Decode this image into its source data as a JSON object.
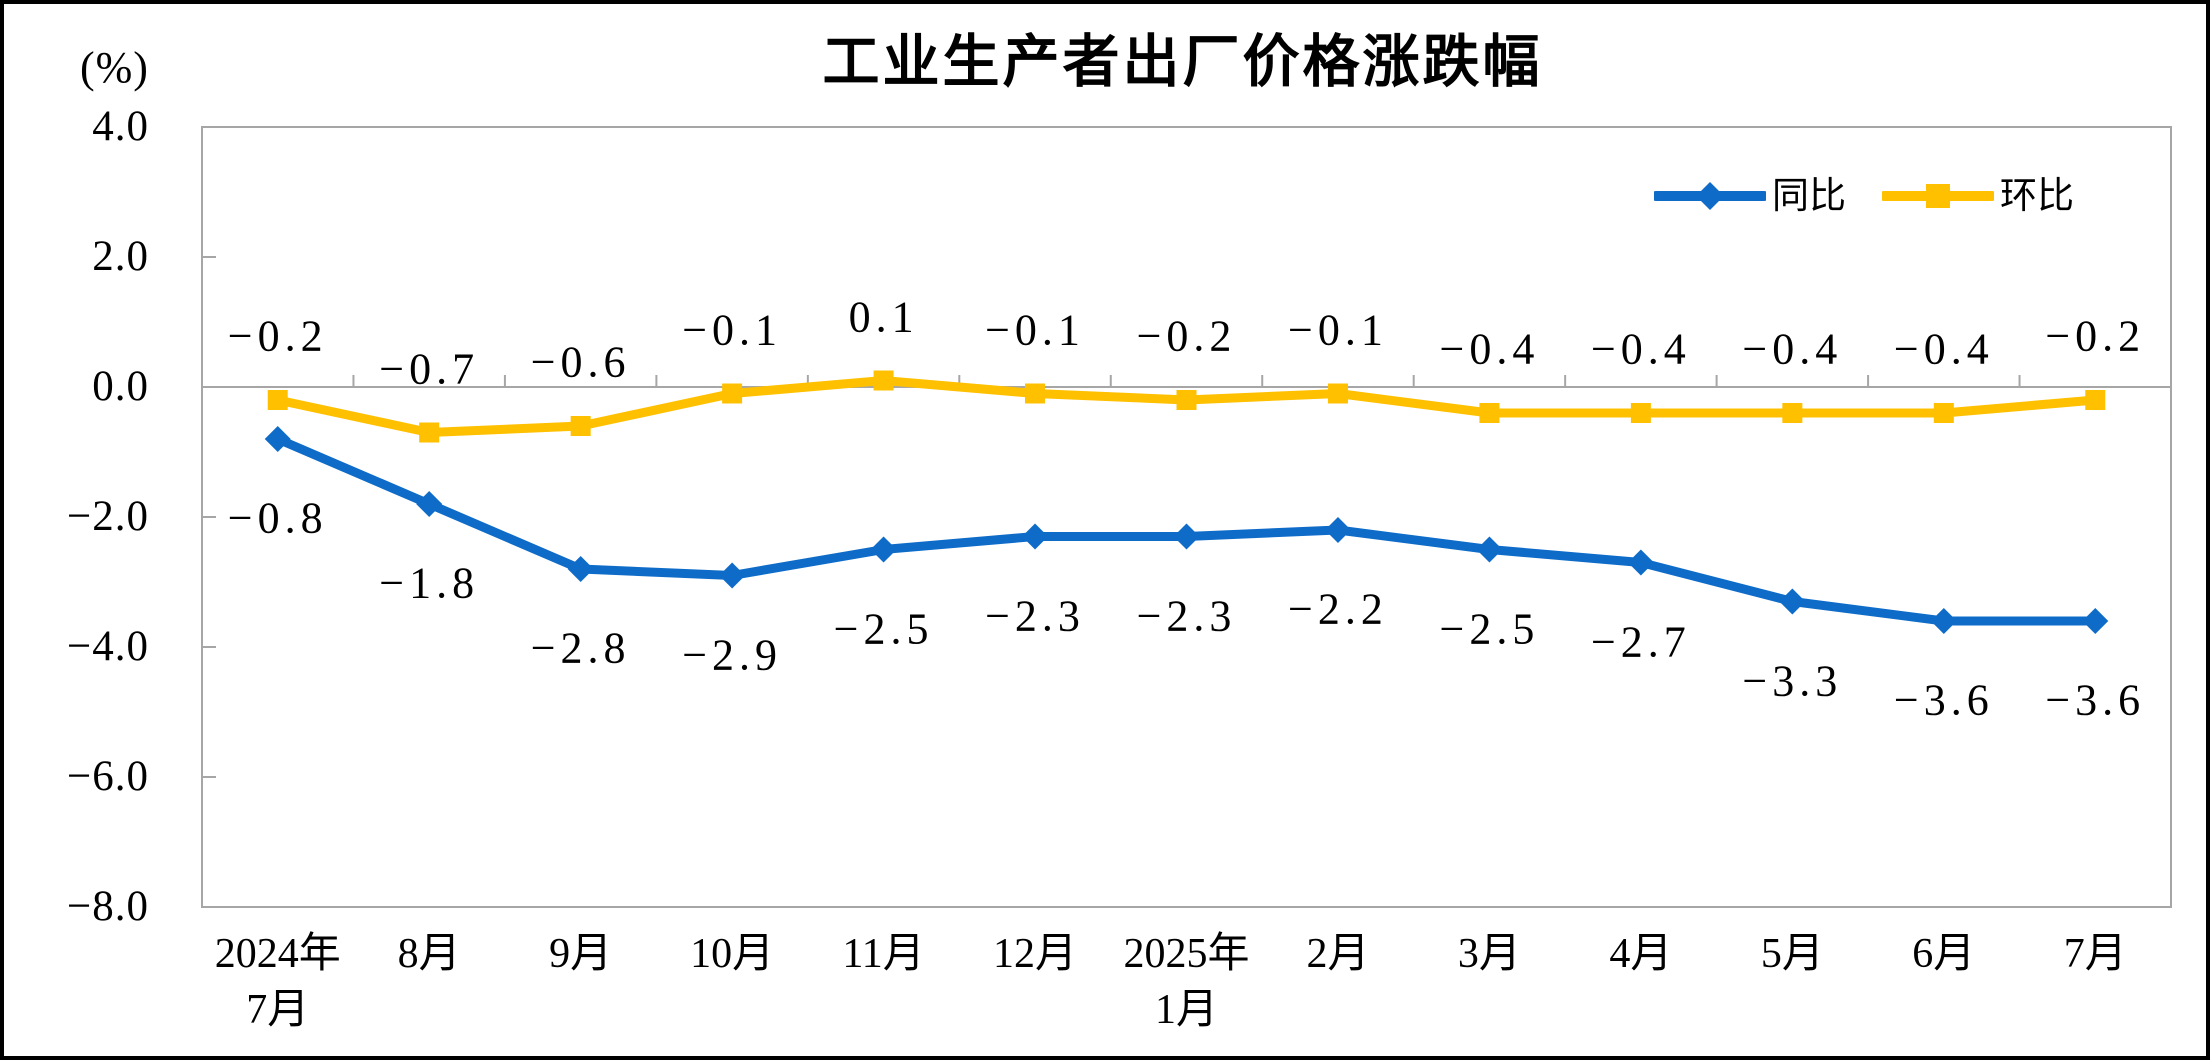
{
  "window": {
    "background": "#ffffff",
    "frame_border_color": "#000000"
  },
  "chart_data": {
    "type": "line",
    "title": "工业生产者出厂价格涨跌幅",
    "y_unit_label": "(%)",
    "categories": [
      "2024年\n7月",
      "8月",
      "9月",
      "10月",
      "11月",
      "12月",
      "2025年\n1月",
      "2月",
      "3月",
      "4月",
      "5月",
      "6月",
      "7月"
    ],
    "series": [
      {
        "name": "同比",
        "color": "#0E6CC8",
        "marker": "diamond",
        "label_side": "below",
        "values": [
          -0.8,
          -1.8,
          -2.8,
          -2.9,
          -2.5,
          -2.3,
          -2.3,
          -2.2,
          -2.5,
          -2.7,
          -3.3,
          -3.6,
          -3.6
        ]
      },
      {
        "name": "环比",
        "color": "#FFC000",
        "marker": "square",
        "label_side": "above",
        "values": [
          -0.2,
          -0.7,
          -0.6,
          -0.1,
          0.1,
          -0.1,
          -0.2,
          -0.1,
          -0.4,
          -0.4,
          -0.4,
          -0.4,
          -0.2
        ]
      }
    ],
    "yticks": [
      4.0,
      2.0,
      0.0,
      -2.0,
      -4.0,
      -6.0,
      -8.0
    ],
    "ylim": [
      -8.0,
      4.0
    ],
    "grid": "zero-line-only",
    "legend_position": "top-right-inside",
    "axis_color": "#A6A6A6",
    "text_color": "#000000",
    "data_labels_shown": true
  }
}
